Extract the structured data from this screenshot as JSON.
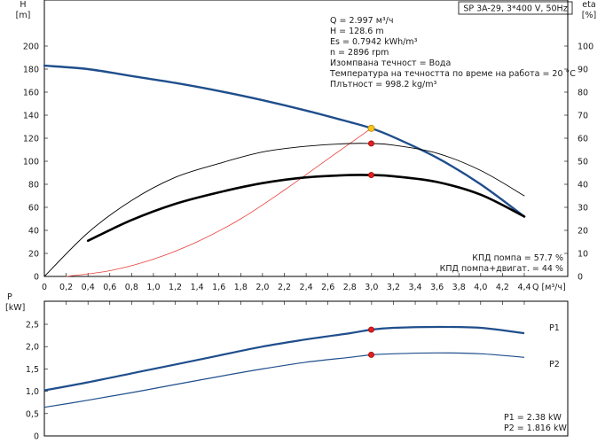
{
  "header": {
    "title": "SP 3A-29, 3*400 V, 50Hz"
  },
  "chart_data": [
    {
      "type": "line",
      "id": "head-efficiency",
      "xlabel": "Q [м³/ч]",
      "ylabel_left_symbol": "H",
      "ylabel_left_unit": "[m]",
      "ylabel_right_symbol": "eta",
      "ylabel_right_unit": "[%]",
      "xlim": [
        0,
        4.4
      ],
      "ylim_left": [
        0,
        200
      ],
      "ylim_right": [
        0,
        100
      ],
      "x_ticks": [
        "0",
        "0,2",
        "0,4",
        "0,6",
        "0,8",
        "1,0",
        "1,2",
        "1,4",
        "1,6",
        "1,8",
        "2,0",
        "2,2",
        "2,4",
        "2,6",
        "2,8",
        "3,0",
        "3,2",
        "3,4",
        "3,6",
        "3,8",
        "4,0",
        "4,2",
        "4,4"
      ],
      "y_ticks_left": [
        "0",
        "20",
        "40",
        "60",
        "80",
        "100",
        "120",
        "140",
        "160",
        "180",
        "200"
      ],
      "y_ticks_right": [
        "0",
        "10",
        "20",
        "30",
        "40",
        "50",
        "60",
        "70",
        "80",
        "90",
        "100"
      ],
      "series": [
        {
          "id": "head",
          "axis": "left",
          "color": "#1f4e8c",
          "x": [
            0,
            0.4,
            0.8,
            1.2,
            1.6,
            2.0,
            2.4,
            2.8,
            2.997,
            3.2,
            3.6,
            4.0,
            4.4
          ],
          "y": [
            183,
            180,
            174,
            168,
            161,
            153,
            144,
            134,
            128.6,
            121,
            103,
            80,
            52
          ]
        },
        {
          "id": "system-curve",
          "axis": "left",
          "color": "#e8403a",
          "x": [
            0.2,
            0.6,
            1.0,
            1.4,
            1.8,
            2.2,
            2.6,
            2.997
          ],
          "y": [
            0,
            5,
            15,
            30,
            50,
            75,
            102,
            128.6
          ]
        },
        {
          "id": "pump-efficiency",
          "axis": "right",
          "color": "#000000",
          "x": [
            0,
            0.4,
            0.8,
            1.2,
            1.6,
            2.0,
            2.4,
            2.8,
            3.0,
            3.2,
            3.6,
            4.0,
            4.4
          ],
          "y": [
            0,
            19,
            33,
            43,
            49,
            54,
            56.5,
            57.7,
            57.7,
            57,
            53.5,
            46,
            35
          ]
        },
        {
          "id": "pump-motor-efficiency",
          "axis": "right",
          "color": "#000000",
          "x": [
            0.4,
            0.8,
            1.2,
            1.6,
            2.0,
            2.4,
            2.8,
            3.0,
            3.2,
            3.6,
            4.0,
            4.4
          ],
          "y": [
            15.5,
            24.5,
            31.5,
            36.5,
            40.5,
            43,
            44,
            44,
            43.5,
            41,
            35.5,
            26
          ]
        }
      ],
      "markers": [
        {
          "id": "duty-point-head",
          "axis": "left",
          "x": 2.997,
          "y": 128.6,
          "color": "#f5c518"
        },
        {
          "id": "duty-point-pump-efficiency",
          "axis": "right",
          "x": 2.997,
          "y": 57.7,
          "color": "#e02020"
        },
        {
          "id": "duty-point-total-efficiency",
          "axis": "right",
          "x": 2.997,
          "y": 44,
          "color": "#e02020"
        }
      ],
      "info_lines": [
        "Q = 2.997 м³/ч",
        "H = 128.6 m",
        "Es = 0.7942 kWh/m³",
        "n = 2896 rpm",
        "Изомпвана течност = Вода",
        "Температура на течността по време на работа = 20 °C",
        "Плътност = 998.2 kg/m³"
      ],
      "efficiency_lines": [
        "КПД помпа = 57.7 %",
        "КПД помпа+двигат. = 44 %"
      ]
    },
    {
      "type": "line",
      "id": "power",
      "ylabel_symbol": "P",
      "ylabel_unit": "[kW]",
      "xlim": [
        0,
        4.4
      ],
      "ylim": [
        0,
        2.5
      ],
      "y_ticks": [
        "0",
        "0,5",
        "1,0",
        "1,5",
        "2,0",
        "2,5"
      ],
      "series": [
        {
          "id": "P1",
          "name": "P1",
          "color": "#1f4e8c",
          "x": [
            0,
            0.4,
            0.8,
            1.2,
            1.6,
            2.0,
            2.4,
            2.8,
            3.0,
            3.2,
            3.6,
            4.0,
            4.4
          ],
          "y": [
            1.02,
            1.2,
            1.4,
            1.6,
            1.8,
            2.0,
            2.16,
            2.3,
            2.38,
            2.42,
            2.44,
            2.42,
            2.3
          ]
        },
        {
          "id": "P2",
          "name": "P2",
          "color": "#1f4e8c",
          "x": [
            0,
            0.4,
            0.8,
            1.2,
            1.6,
            2.0,
            2.4,
            2.8,
            3.0,
            3.2,
            3.6,
            4.0,
            4.4
          ],
          "y": [
            0.64,
            0.8,
            0.97,
            1.15,
            1.33,
            1.5,
            1.65,
            1.76,
            1.816,
            1.84,
            1.86,
            1.84,
            1.76
          ]
        }
      ],
      "markers": [
        {
          "id": "duty-point-P1",
          "x": 2.997,
          "y": 2.38,
          "color": "#e02020"
        },
        {
          "id": "duty-point-P2",
          "x": 2.997,
          "y": 1.816,
          "color": "#e02020"
        }
      ],
      "value_lines": [
        "P1 = 2.38 kW",
        "P2 = 1.816 kW"
      ]
    }
  ]
}
